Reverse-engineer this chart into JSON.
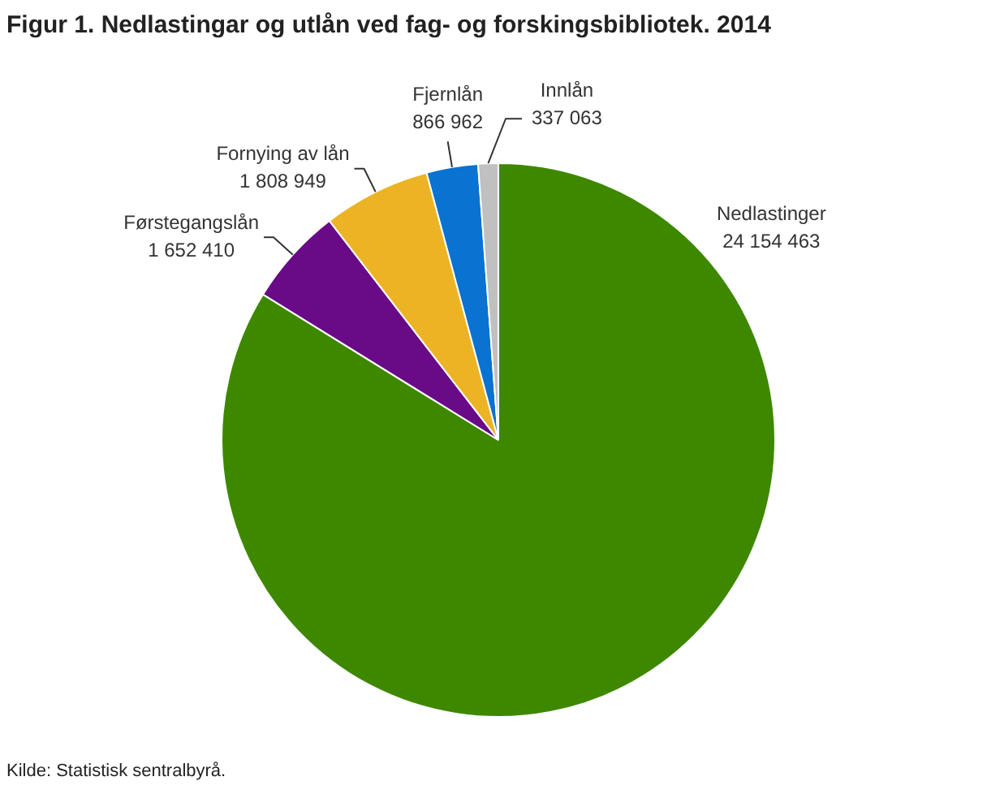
{
  "chart_data": {
    "type": "pie",
    "title": "Figur 1. Nedlastingar og utlån ved fag- og forskingsbibliotek. 2014",
    "categories": [
      "Nedlastinger",
      "Førstegangslån",
      "Fornying av lån",
      "Fjernlån",
      "Innlån"
    ],
    "values": [
      24154463,
      1652410,
      1808949,
      866962,
      337063
    ],
    "colors": [
      "#3e8800",
      "#690a87",
      "#ecb425",
      "#0a72d0",
      "#c0c0c0"
    ],
    "value_labels": [
      "24 154 463",
      "1 652 410",
      "1 808 949",
      "866 962",
      "337 063"
    ],
    "annotations": [
      "Kilde: Statistisk sentralbyrå."
    ]
  }
}
